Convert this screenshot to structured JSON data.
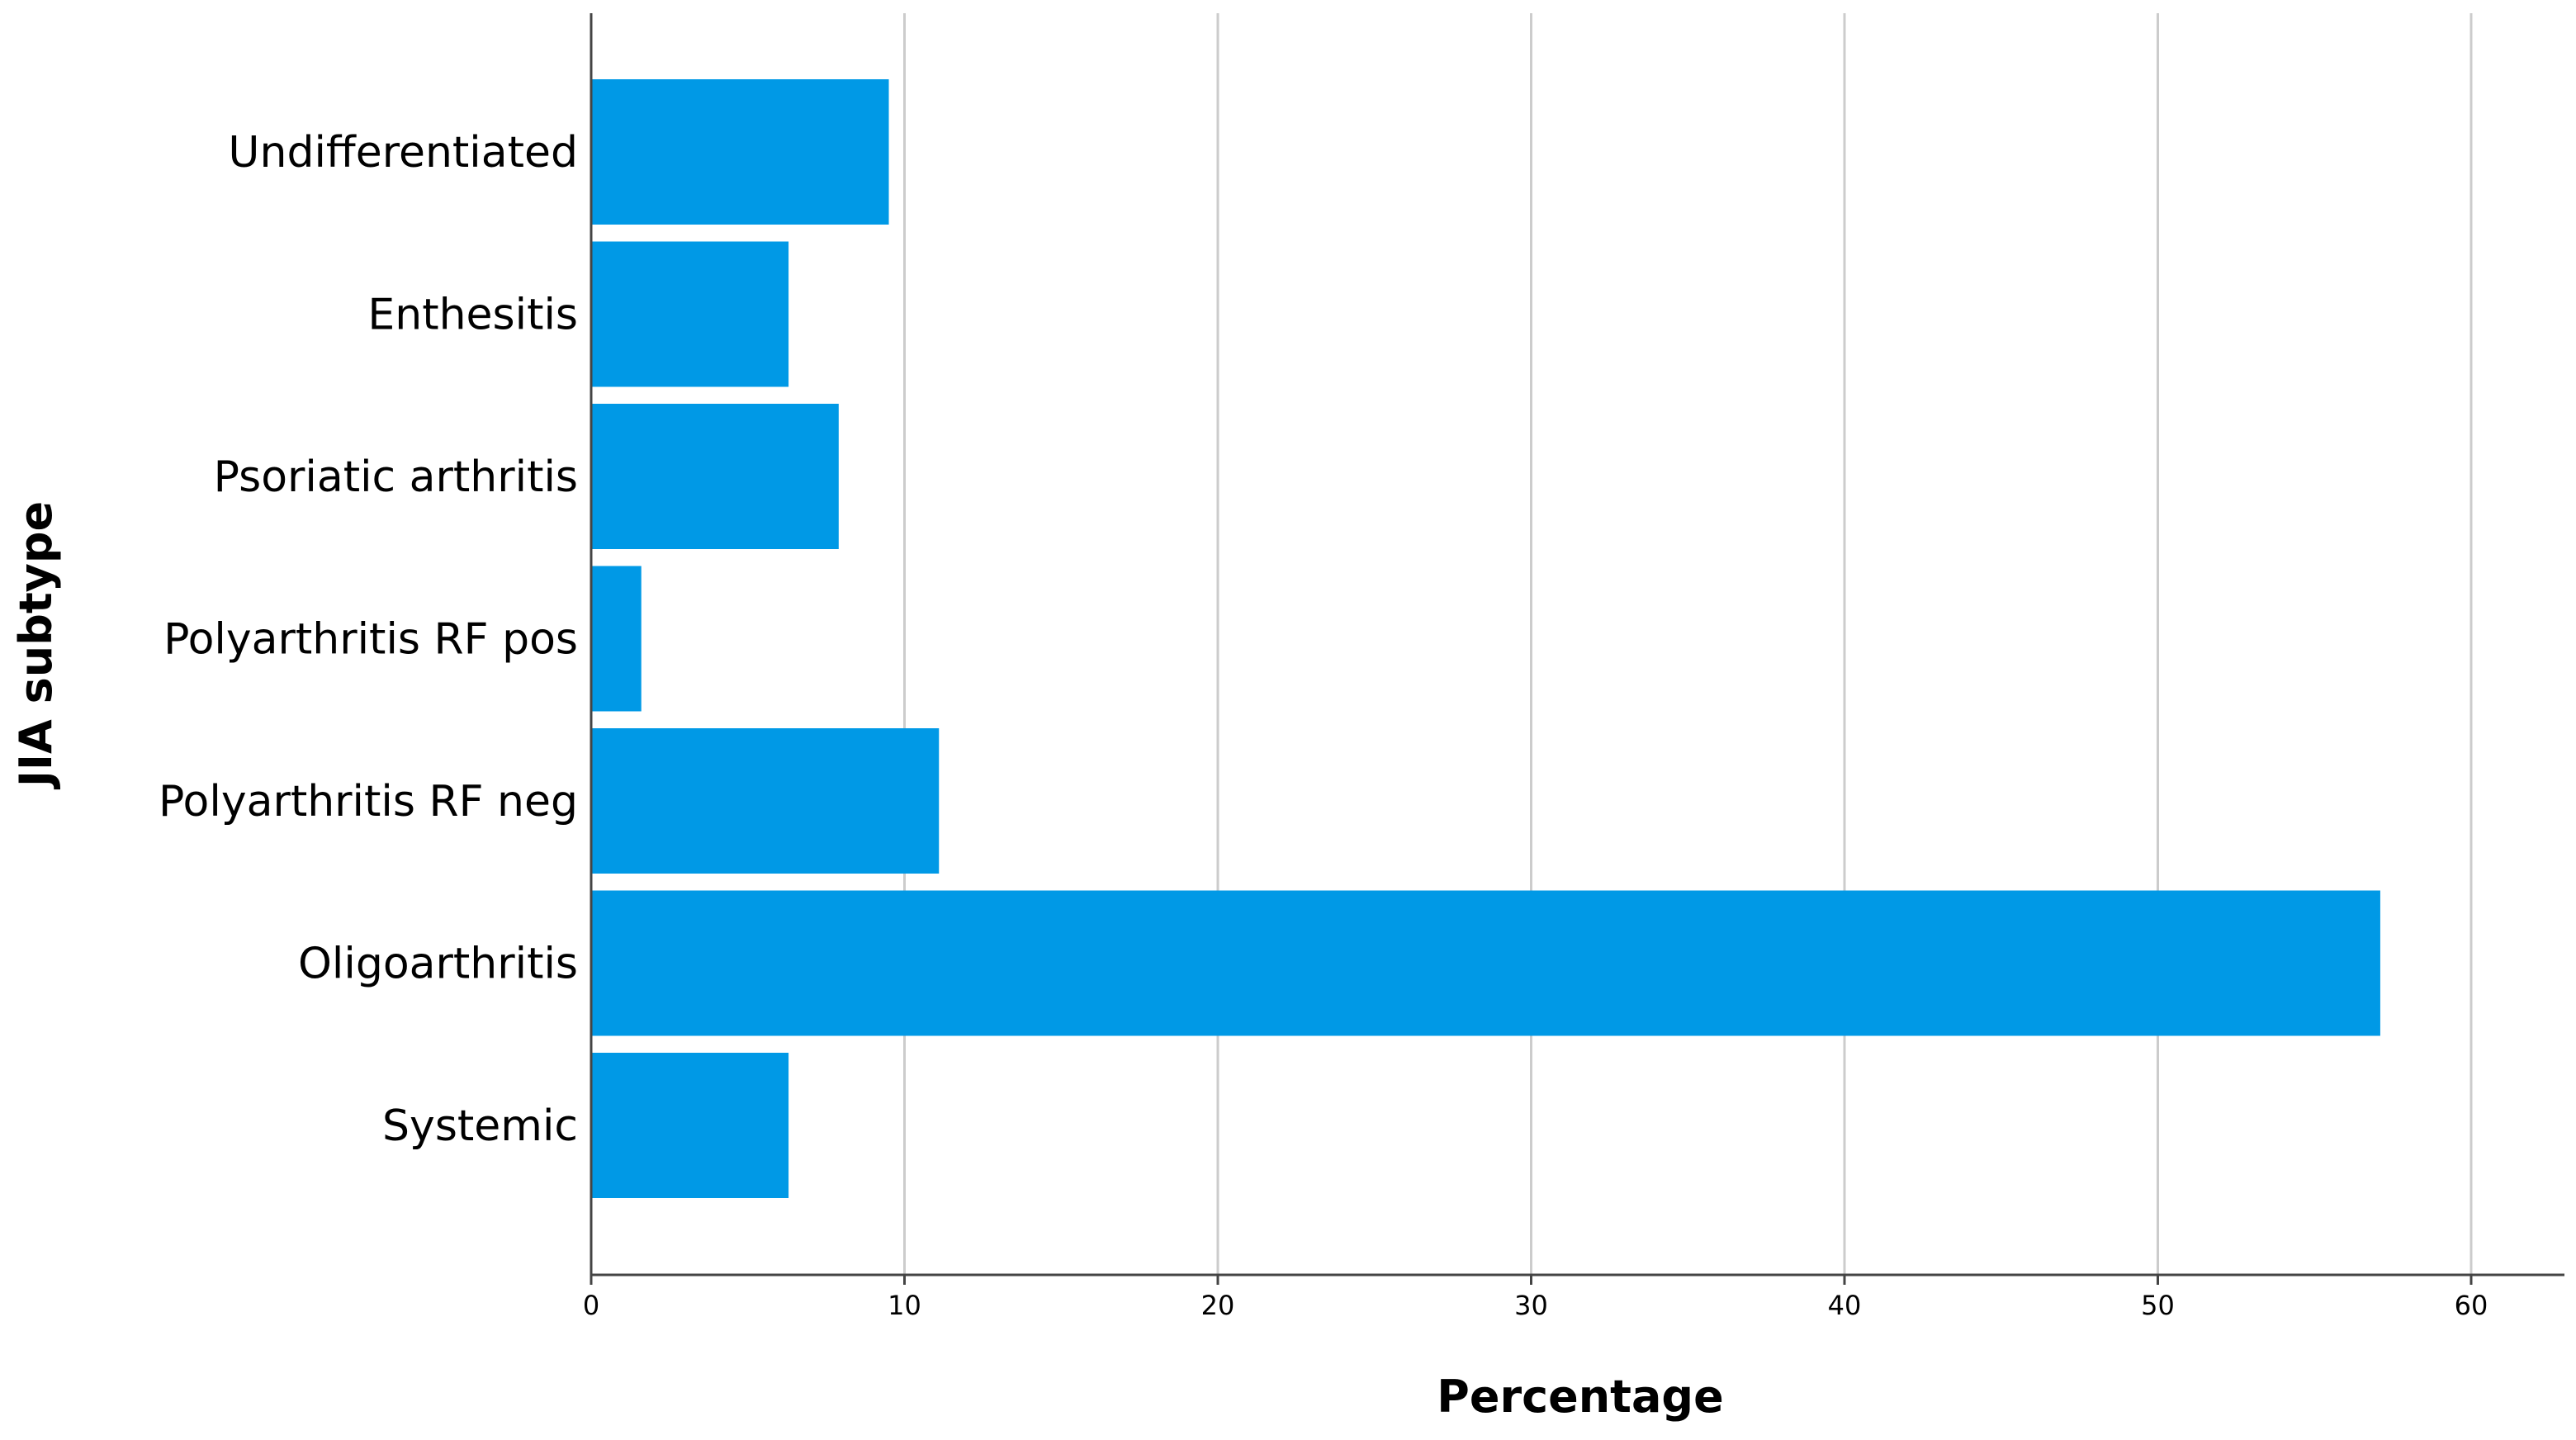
{
  "chart_data": {
    "type": "bar",
    "orientation": "horizontal",
    "xlabel": "Percentage",
    "ylabel": "JIA subtype",
    "xlim": [
      0,
      63
    ],
    "xticks": [
      0,
      10,
      20,
      30,
      40,
      50,
      60
    ],
    "grid": "vertical",
    "legend": "none",
    "bar_color": "#0099e6",
    "categories": [
      "Undifferentiated",
      "Enthesitis",
      "Psoriatic arthritis",
      "Polyarthritis RF pos",
      "Polyarthritis RF neg",
      "Oligoarthritis",
      "Systemic"
    ],
    "values": [
      9.5,
      6.3,
      7.9,
      1.6,
      11.1,
      57.1,
      6.3
    ]
  }
}
